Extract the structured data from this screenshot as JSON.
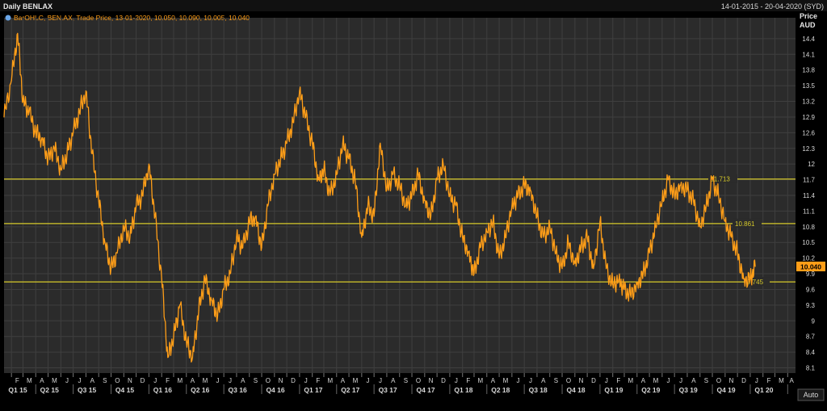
{
  "header": {
    "title": "Daily BENLAX",
    "date_range": "14-01-2015 - 20-04-2020 (SYD)",
    "legend": "BarOHLC, BEN.AX, Trade Price, 13-01-2020, 10.050, 10.090, 10.005, 10.040"
  },
  "axis_header": {
    "price": "Price",
    "currency": "AUD"
  },
  "footer": {
    "auto_label": "Auto"
  },
  "colors": {
    "background": "#000000",
    "plot": "#2b2b2b",
    "grid": "#3f3f3f",
    "series": "#ff9e18",
    "level_line": "#d6c92a",
    "text": "#d8d8d8"
  },
  "chart_data": {
    "type": "line",
    "series": [
      {
        "name": "BEN.AX",
        "values": [
          [
            "2015-01-14",
            12.9
          ],
          [
            "2015-02-01",
            13.6
          ],
          [
            "2015-02-16",
            14.5
          ],
          [
            "2015-03-01",
            13.2
          ],
          [
            "2015-03-16",
            13.0
          ],
          [
            "2015-04-01",
            12.6
          ],
          [
            "2015-04-16",
            12.5
          ],
          [
            "2015-05-01",
            12.1
          ],
          [
            "2015-05-16",
            12.3
          ],
          [
            "2015-06-01",
            11.9
          ],
          [
            "2015-06-16",
            12.2
          ],
          [
            "2015-07-01",
            12.6
          ],
          [
            "2015-07-16",
            13.0
          ],
          [
            "2015-08-01",
            13.4
          ],
          [
            "2015-08-16",
            12.2
          ],
          [
            "2015-09-01",
            11.3
          ],
          [
            "2015-09-16",
            10.5
          ],
          [
            "2015-10-01",
            10.0
          ],
          [
            "2015-10-16",
            10.3
          ],
          [
            "2015-11-01",
            10.8
          ],
          [
            "2015-11-16",
            10.6
          ],
          [
            "2015-12-01",
            11.2
          ],
          [
            "2015-12-16",
            11.4
          ],
          [
            "2016-01-01",
            12.0
          ],
          [
            "2016-01-16",
            11.0
          ],
          [
            "2016-02-01",
            9.8
          ],
          [
            "2016-02-16",
            8.3
          ],
          [
            "2016-03-01",
            8.7
          ],
          [
            "2016-03-16",
            9.3
          ],
          [
            "2016-04-01",
            8.6
          ],
          [
            "2016-04-16",
            8.3
          ],
          [
            "2016-05-01",
            9.2
          ],
          [
            "2016-05-16",
            9.8
          ],
          [
            "2016-06-01",
            9.4
          ],
          [
            "2016-06-16",
            9.1
          ],
          [
            "2016-07-01",
            9.6
          ],
          [
            "2016-07-16",
            9.9
          ],
          [
            "2016-08-01",
            10.6
          ],
          [
            "2016-08-16",
            10.4
          ],
          [
            "2016-09-01",
            10.9
          ],
          [
            "2016-09-16",
            11.0
          ],
          [
            "2016-10-01",
            10.4
          ],
          [
            "2016-10-16",
            11.2
          ],
          [
            "2016-11-01",
            11.8
          ],
          [
            "2016-11-16",
            12.1
          ],
          [
            "2016-12-01",
            12.4
          ],
          [
            "2016-12-16",
            12.8
          ],
          [
            "2017-01-01",
            13.4
          ],
          [
            "2017-01-16",
            12.9
          ],
          [
            "2017-02-01",
            12.4
          ],
          [
            "2017-02-16",
            11.7
          ],
          [
            "2017-03-01",
            11.9
          ],
          [
            "2017-03-16",
            11.4
          ],
          [
            "2017-04-01",
            11.8
          ],
          [
            "2017-04-16",
            12.4
          ],
          [
            "2017-05-01",
            12.1
          ],
          [
            "2017-05-16",
            11.7
          ],
          [
            "2017-06-01",
            10.6
          ],
          [
            "2017-06-16",
            11.2
          ],
          [
            "2017-07-01",
            11.0
          ],
          [
            "2017-07-16",
            12.4
          ],
          [
            "2017-08-01",
            11.5
          ],
          [
            "2017-08-16",
            11.8
          ],
          [
            "2017-09-01",
            11.6
          ],
          [
            "2017-09-16",
            11.2
          ],
          [
            "2017-10-01",
            11.4
          ],
          [
            "2017-10-16",
            11.8
          ],
          [
            "2017-11-01",
            11.3
          ],
          [
            "2017-11-16",
            11.0
          ],
          [
            "2017-12-01",
            11.7
          ],
          [
            "2017-12-16",
            12.0
          ],
          [
            "2018-01-01",
            11.4
          ],
          [
            "2018-01-16",
            11.2
          ],
          [
            "2018-02-01",
            10.6
          ],
          [
            "2018-02-16",
            10.3
          ],
          [
            "2018-03-01",
            9.9
          ],
          [
            "2018-03-16",
            10.4
          ],
          [
            "2018-04-01",
            10.7
          ],
          [
            "2018-04-16",
            10.9
          ],
          [
            "2018-05-01",
            10.2
          ],
          [
            "2018-05-16",
            10.6
          ],
          [
            "2018-06-01",
            11.2
          ],
          [
            "2018-06-16",
            11.4
          ],
          [
            "2018-07-01",
            11.6
          ],
          [
            "2018-07-16",
            11.5
          ],
          [
            "2018-08-01",
            11.0
          ],
          [
            "2018-08-16",
            10.6
          ],
          [
            "2018-09-01",
            10.8
          ],
          [
            "2018-09-16",
            10.3
          ],
          [
            "2018-10-01",
            10.0
          ],
          [
            "2018-10-16",
            10.5
          ],
          [
            "2018-11-01",
            10.1
          ],
          [
            "2018-11-16",
            10.4
          ],
          [
            "2018-12-01",
            10.6
          ],
          [
            "2018-12-16",
            10.0
          ],
          [
            "2019-01-01",
            10.9
          ],
          [
            "2019-01-16",
            10.0
          ],
          [
            "2019-02-01",
            9.7
          ],
          [
            "2019-02-16",
            9.8
          ],
          [
            "2019-03-01",
            9.6
          ],
          [
            "2019-03-16",
            9.5
          ],
          [
            "2019-04-01",
            9.7
          ],
          [
            "2019-04-16",
            9.9
          ],
          [
            "2019-05-01",
            10.3
          ],
          [
            "2019-05-16",
            10.8
          ],
          [
            "2019-06-01",
            11.3
          ],
          [
            "2019-06-16",
            11.7
          ],
          [
            "2019-07-01",
            11.4
          ],
          [
            "2019-07-16",
            11.6
          ],
          [
            "2019-08-01",
            11.5
          ],
          [
            "2019-08-16",
            11.3
          ],
          [
            "2019-09-01",
            10.8
          ],
          [
            "2019-09-16",
            11.2
          ],
          [
            "2019-10-01",
            11.7
          ],
          [
            "2019-10-16",
            11.4
          ],
          [
            "2019-11-01",
            10.9
          ],
          [
            "2019-11-16",
            10.6
          ],
          [
            "2019-12-01",
            10.3
          ],
          [
            "2019-12-16",
            9.8
          ],
          [
            "2020-01-01",
            9.8
          ],
          [
            "2020-01-13",
            10.04
          ]
        ]
      }
    ],
    "ylim": [
      8.0,
      14.8
    ],
    "y_ticks": [
      "8.1",
      "8.4",
      "8.7",
      "9",
      "9.3",
      "9.6",
      "9.9",
      "10.2",
      "10.5",
      "10.8",
      "11.1",
      "11.4",
      "11.7",
      "12",
      "12.3",
      "12.6",
      "12.9",
      "13.2",
      "13.5",
      "13.8",
      "14.1",
      "14.4"
    ],
    "last_price": "10.040",
    "levels": [
      {
        "label": "11.713",
        "value": 11.713
      },
      {
        "label": "10.861",
        "value": 10.861
      },
      {
        "label": "9.745",
        "value": 9.745
      }
    ],
    "month_ticks": [
      "F",
      "M",
      "A",
      "M",
      "J",
      "J",
      "A",
      "S",
      "O",
      "N",
      "D",
      "J",
      "F",
      "M",
      "A",
      "M",
      "J",
      "J",
      "A",
      "S",
      "O",
      "N",
      "D",
      "J",
      "F",
      "M",
      "A",
      "M",
      "J",
      "J",
      "A",
      "S",
      "O",
      "N",
      "D",
      "J",
      "F",
      "M",
      "A",
      "M",
      "J",
      "J",
      "A",
      "S",
      "O",
      "N",
      "D",
      "J",
      "F",
      "M",
      "A",
      "M",
      "J",
      "J",
      "A",
      "S",
      "O",
      "N",
      "D",
      "J",
      "F",
      "M",
      "A"
    ],
    "quarter_labels": [
      "Q1 15",
      "Q2 15",
      "Q3 15",
      "Q4 15",
      "Q1 16",
      "Q2 16",
      "Q3 16",
      "Q4 16",
      "Q1 17",
      "Q2 17",
      "Q3 17",
      "Q4 17",
      "Q1 18",
      "Q2 18",
      "Q3 18",
      "Q4 18",
      "Q1 19",
      "Q2 19",
      "Q3 19",
      "Q4 19",
      "Q1 20"
    ],
    "grid": true
  }
}
